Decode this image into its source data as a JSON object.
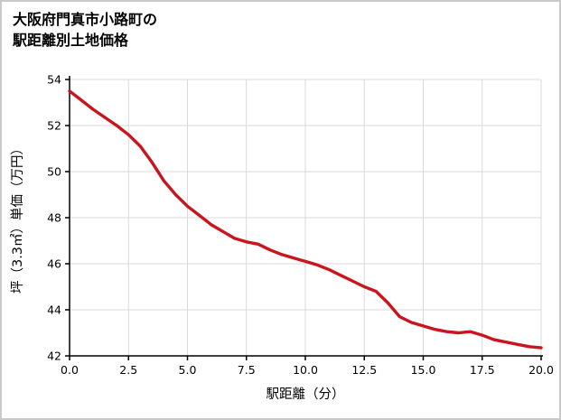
{
  "header": {
    "title_line1": "大阪府門真市小路町の",
    "title_line2": "駅距離別土地価格"
  },
  "colors": {
    "line": "#c9151e",
    "grid": "#d9d9d9",
    "axis": "#000000",
    "background": "#ffffff",
    "frame_border": "#c9c9c9"
  },
  "chart_data": {
    "type": "line",
    "title": "大阪府門真市小路町の駅距離別土地価格",
    "xlabel": "駅距離（分）",
    "ylabel": "坪（3.3㎡）単価（万円）",
    "xlim": [
      0,
      20
    ],
    "ylim": [
      42,
      54
    ],
    "grid": true,
    "legend_position": "none",
    "x_tick_labels": [
      "0.0",
      "2.5",
      "5.0",
      "7.5",
      "10.0",
      "12.5",
      "15.0",
      "17.5",
      "20.0"
    ],
    "x_tick_values": [
      0,
      2.5,
      5,
      7.5,
      10,
      12.5,
      15,
      17.5,
      20
    ],
    "y_tick_labels": [
      "42",
      "44",
      "46",
      "48",
      "50",
      "52",
      "54"
    ],
    "y_tick_values": [
      42,
      44,
      46,
      48,
      50,
      52,
      54
    ],
    "series": [
      {
        "name": "駅距離別土地価格",
        "x": [
          0,
          0.5,
          1,
          1.5,
          2,
          2.5,
          3,
          3.5,
          4,
          4.5,
          5,
          5.5,
          6,
          6.5,
          7,
          7.5,
          8,
          8.5,
          9,
          9.5,
          10,
          10.5,
          11,
          11.5,
          12,
          12.5,
          13,
          13.5,
          14,
          14.5,
          15,
          15.5,
          16,
          16.5,
          17,
          17.5,
          18,
          18.5,
          19,
          19.5,
          20
        ],
        "y": [
          53.5,
          53.1,
          52.7,
          52.35,
          52.0,
          51.6,
          51.1,
          50.4,
          49.6,
          49.0,
          48.5,
          48.1,
          47.7,
          47.4,
          47.1,
          46.95,
          46.85,
          46.6,
          46.4,
          46.25,
          46.1,
          45.95,
          45.75,
          45.5,
          45.25,
          45.0,
          44.8,
          44.3,
          43.7,
          43.45,
          43.3,
          43.15,
          43.05,
          43.0,
          43.05,
          42.9,
          42.7,
          42.6,
          42.5,
          42.4,
          42.35
        ]
      }
    ]
  }
}
